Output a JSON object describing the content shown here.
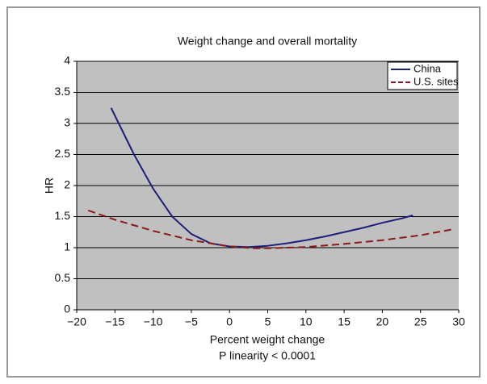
{
  "chart_data": {
    "type": "line",
    "title": "Weight change and overall mortality",
    "xlabel": "Percent weight change",
    "ylabel": "HR",
    "annotation": "P linearity < 0.0001",
    "xlim": [
      -20,
      30
    ],
    "xticks": [
      {
        "value": -20,
        "label": "−20"
      },
      {
        "value": -15,
        "label": "−15"
      },
      {
        "value": -10,
        "label": "−10"
      },
      {
        "value": -5,
        "label": "−5"
      },
      0,
      5,
      10,
      15,
      20,
      25,
      30
    ],
    "ylim": [
      0,
      4
    ],
    "yticks": [
      0,
      0.5,
      1,
      1.5,
      2,
      2.5,
      3,
      3.5,
      4
    ],
    "grid": true,
    "legend": "top-right",
    "series": [
      {
        "name": "China",
        "color": "#1f1f7a",
        "dash": false,
        "x": [
          -15.5,
          -12.5,
          -10,
          -7.5,
          -5,
          -2.5,
          0,
          2.5,
          5,
          7.5,
          10,
          12.5,
          15,
          17.5,
          20,
          22.5,
          24
        ],
        "values": [
          3.25,
          2.5,
          1.95,
          1.5,
          1.22,
          1.07,
          1.02,
          1.01,
          1.03,
          1.07,
          1.12,
          1.18,
          1.25,
          1.32,
          1.4,
          1.47,
          1.52
        ]
      },
      {
        "name": "U.S. sites",
        "color": "#8b1a1a",
        "dash": true,
        "x": [
          -18.5,
          -15,
          -10,
          -5,
          0,
          3,
          5,
          10,
          15,
          20,
          25,
          29
        ],
        "values": [
          1.6,
          1.45,
          1.27,
          1.12,
          1.02,
          0.99,
          0.99,
          1.01,
          1.06,
          1.12,
          1.2,
          1.29
        ]
      }
    ]
  }
}
